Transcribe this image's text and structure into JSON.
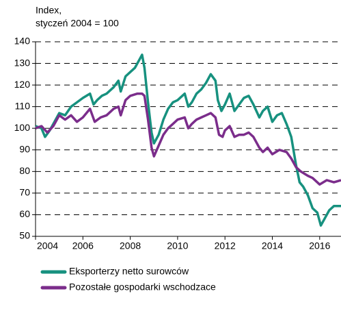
{
  "chart_data": {
    "type": "line",
    "ylabel": [
      "Index,",
      "styczeń 2004 = 100"
    ],
    "xlim": [
      2004,
      2016.9
    ],
    "xticks": [
      2004,
      2006,
      2008,
      2010,
      2012,
      2014,
      2016
    ],
    "ylim": [
      50,
      140
    ],
    "yticks": [
      50,
      60,
      70,
      80,
      90,
      100,
      110,
      120,
      130,
      140
    ],
    "grid": true,
    "series": [
      {
        "name": "Eksporterzy netto surowców",
        "color": "#17917f",
        "x": [
          2004.0,
          2004.25,
          2004.4,
          2004.6,
          2004.8,
          2005.0,
          2005.25,
          2005.5,
          2005.75,
          2006.0,
          2006.3,
          2006.45,
          2006.6,
          2006.8,
          2007.0,
          2007.3,
          2007.5,
          2007.6,
          2007.8,
          2008.0,
          2008.2,
          2008.4,
          2008.5,
          2008.6,
          2008.75,
          2008.9,
          2009.0,
          2009.2,
          2009.4,
          2009.6,
          2009.8,
          2010.0,
          2010.3,
          2010.45,
          2010.6,
          2010.8,
          2011.0,
          2011.2,
          2011.4,
          2011.6,
          2011.7,
          2011.85,
          2012.0,
          2012.2,
          2012.4,
          2012.6,
          2012.8,
          2013.0,
          2013.2,
          2013.45,
          2013.6,
          2013.8,
          2014.0,
          2014.2,
          2014.4,
          2014.6,
          2014.8,
          2015.0,
          2015.15,
          2015.3,
          2015.5,
          2015.7,
          2015.9,
          2016.05,
          2016.2,
          2016.4,
          2016.6,
          2016.9
        ],
        "values": [
          101,
          100,
          96,
          99,
          103,
          107,
          106,
          110,
          112,
          114,
          116,
          111,
          113,
          115,
          116,
          119,
          122,
          117,
          124,
          126,
          128,
          132,
          134,
          128,
          112,
          98,
          93,
          97,
          104,
          109,
          112,
          113,
          116,
          110,
          112,
          116,
          118,
          121,
          125,
          122,
          113,
          108,
          111,
          116,
          108,
          111,
          114,
          115,
          111,
          105,
          108,
          110,
          103,
          106,
          107,
          102,
          96,
          83,
          75,
          73,
          69,
          63,
          61,
          55,
          58,
          62,
          64,
          64
        ]
      },
      {
        "name": "Pozostałe gospodarki wschodzace",
        "color": "#7b2d8b",
        "x": [
          2004.0,
          2004.25,
          2004.5,
          2004.75,
          2005.0,
          2005.25,
          2005.5,
          2005.75,
          2006.0,
          2006.3,
          2006.5,
          2006.75,
          2007.0,
          2007.3,
          2007.5,
          2007.6,
          2007.8,
          2008.0,
          2008.3,
          2008.5,
          2008.6,
          2008.75,
          2008.9,
          2009.0,
          2009.2,
          2009.4,
          2009.6,
          2009.8,
          2010.0,
          2010.3,
          2010.45,
          2010.6,
          2010.8,
          2011.0,
          2011.2,
          2011.4,
          2011.6,
          2011.75,
          2011.9,
          2012.0,
          2012.2,
          2012.4,
          2012.6,
          2012.8,
          2013.0,
          2013.2,
          2013.45,
          2013.6,
          2013.8,
          2014.0,
          2014.3,
          2014.6,
          2014.8,
          2015.0,
          2015.2,
          2015.5,
          2015.7,
          2016.0,
          2016.3,
          2016.6,
          2016.9
        ],
        "values": [
          100,
          101,
          98,
          101,
          106,
          104,
          106,
          103,
          105,
          109,
          103,
          105,
          106,
          109,
          110,
          106,
          113,
          115,
          116,
          116,
          115,
          104,
          91,
          87,
          92,
          97,
          100,
          102,
          104,
          105,
          100,
          102,
          104,
          105,
          106,
          107,
          105,
          97,
          96,
          99,
          101,
          96,
          97,
          97,
          98,
          96,
          91,
          89,
          91,
          88,
          90,
          89,
          86,
          82,
          80,
          78,
          77,
          74,
          76,
          75,
          76
        ]
      }
    ]
  }
}
